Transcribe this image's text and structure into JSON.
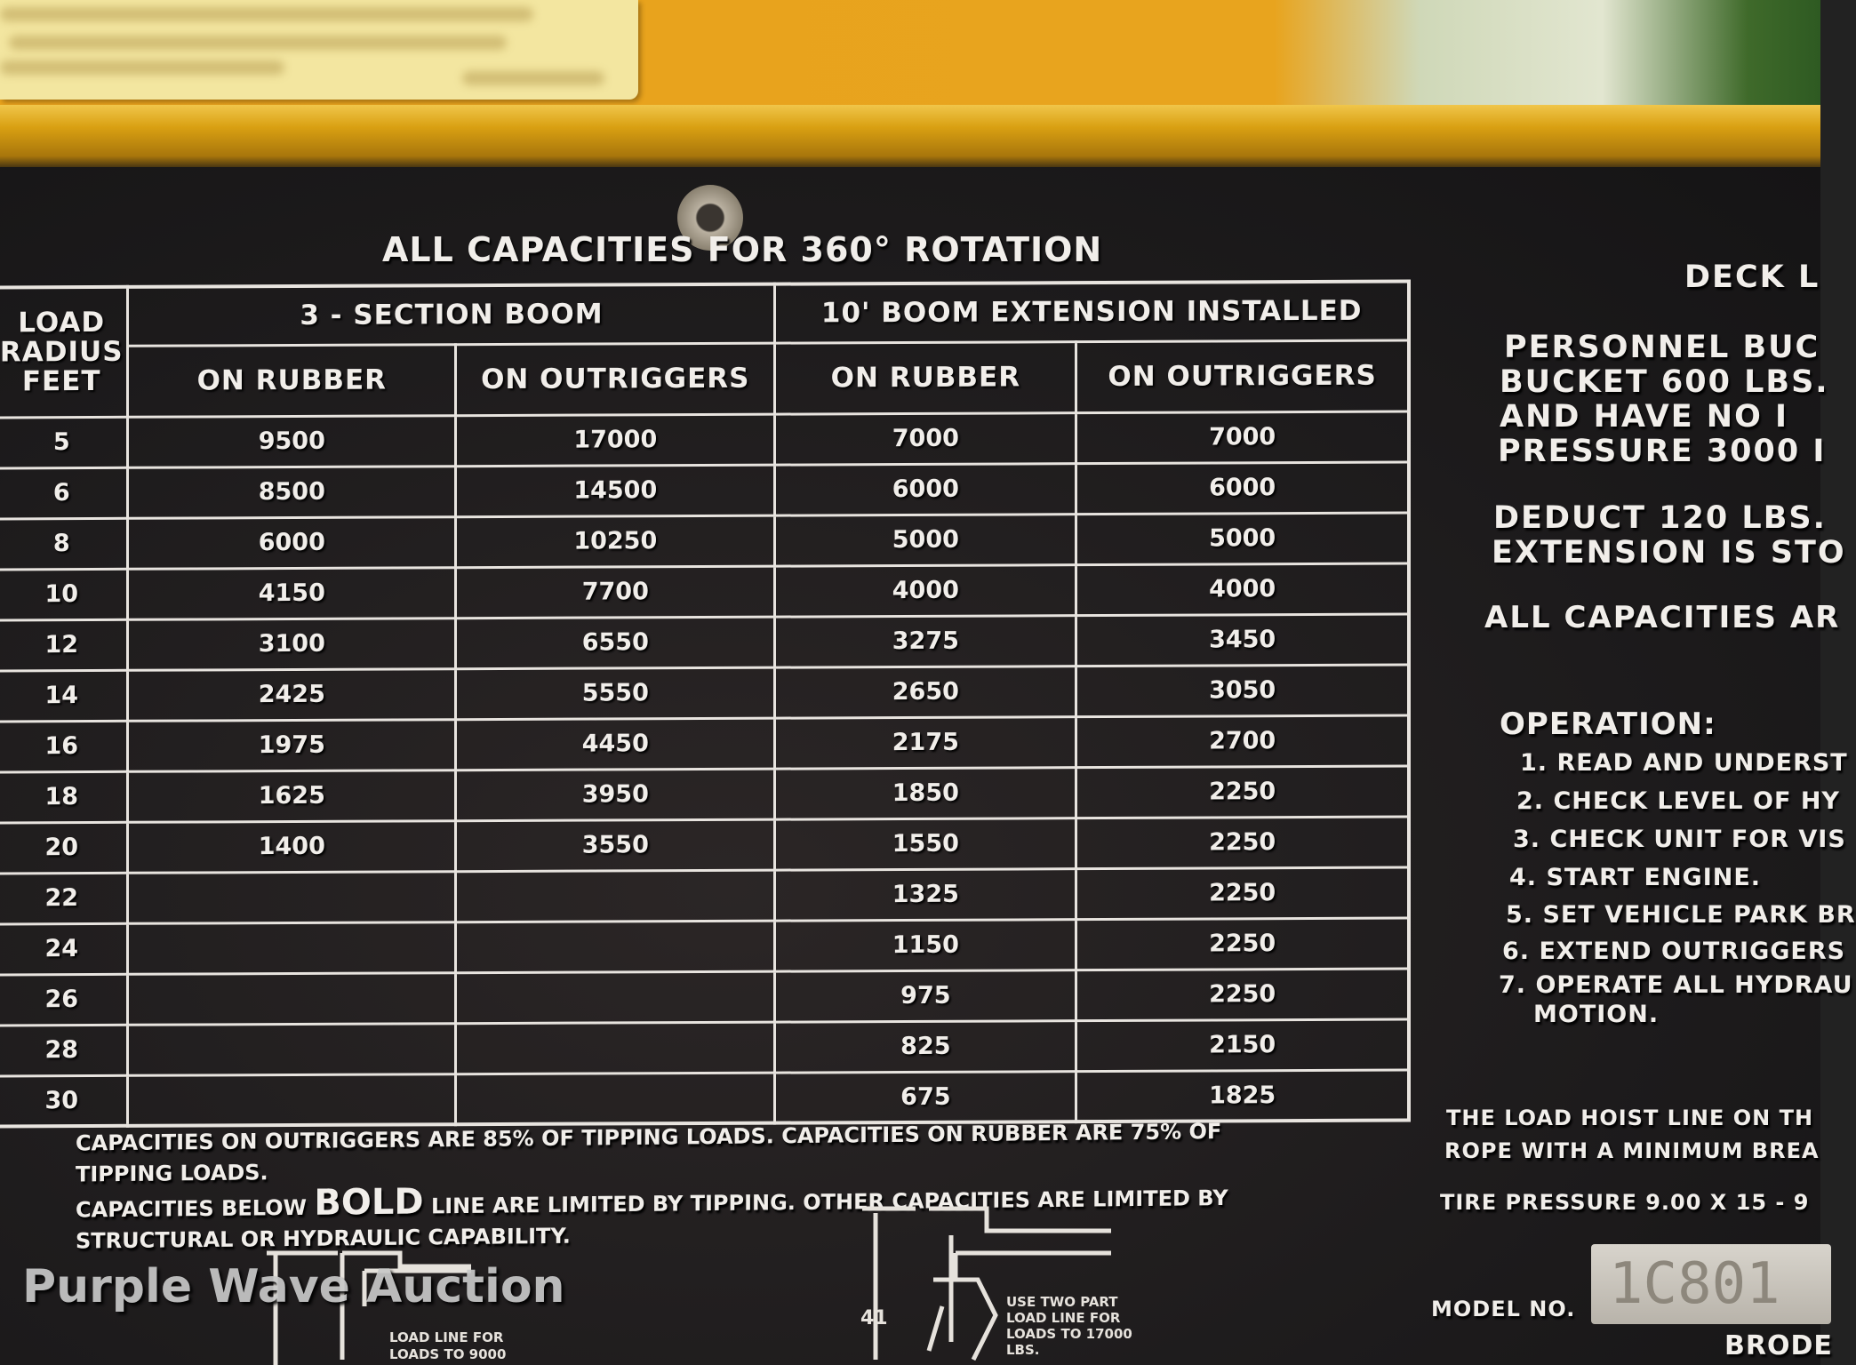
{
  "title": "ALL CAPACITIES FOR 360° ROTATION",
  "table": {
    "corner_header": [
      "LOAD",
      "RADIUS",
      "FEET"
    ],
    "group_headers": [
      "3 - SECTION BOOM",
      "10' BOOM EXTENSION INSTALLED"
    ],
    "sub_headers": [
      "ON RUBBER",
      "ON OUTRIGGERS",
      "ON RUBBER",
      "ON OUTRIGGERS"
    ],
    "rows": [
      {
        "radius": "5",
        "values": [
          "9500",
          "17000",
          "7000",
          "7000"
        ]
      },
      {
        "radius": "6",
        "values": [
          "8500",
          "14500",
          "6000",
          "6000"
        ]
      },
      {
        "radius": "8",
        "values": [
          "6000",
          "10250",
          "5000",
          "5000"
        ]
      },
      {
        "radius": "10",
        "values": [
          "4150",
          "7700",
          "4000",
          "4000"
        ]
      },
      {
        "radius": "12",
        "values": [
          "3100",
          "6550",
          "3275",
          "3450"
        ]
      },
      {
        "radius": "14",
        "values": [
          "2425",
          "5550",
          "2650",
          "3050"
        ]
      },
      {
        "radius": "16",
        "values": [
          "1975",
          "4450",
          "2175",
          "2700"
        ]
      },
      {
        "radius": "18",
        "values": [
          "1625",
          "3950",
          "1850",
          "2250"
        ]
      },
      {
        "radius": "20",
        "values": [
          "1400",
          "3550",
          "1550",
          "2250"
        ]
      },
      {
        "radius": "22",
        "values": [
          "",
          "",
          "1325",
          "2250"
        ]
      },
      {
        "radius": "24",
        "values": [
          "",
          "",
          "1150",
          "2250"
        ]
      },
      {
        "radius": "26",
        "values": [
          "",
          "",
          "975",
          "2250"
        ]
      },
      {
        "radius": "28",
        "values": [
          "",
          "",
          "825",
          "2150"
        ]
      },
      {
        "radius": "30",
        "values": [
          "",
          "",
          "675",
          "1825"
        ]
      }
    ]
  },
  "notes": {
    "line1": "CAPACITIES ON OUTRIGGERS ARE 85% OF TIPPING LOADS. CAPACITIES ON RUBBER ARE 75% OF",
    "line2": "TIPPING LOADS.",
    "line3_pre": "CAPACITIES BELOW",
    "line3_bold": "BOLD",
    "line3_post": "LINE ARE LIMITED BY TIPPING. OTHER CAPACITIES ARE LIMITED BY",
    "line4": "STRUCTURAL OR HYDRAULIC CAPABILITY."
  },
  "diagrams": {
    "left_caption": [
      "LOAD LINE FOR",
      "LOADS TO 9000"
    ],
    "right_caption": [
      "USE TWO PART",
      "LOAD LINE FOR",
      "LOADS TO 17000",
      "LBS."
    ],
    "dimension": "41"
  },
  "right_panel": {
    "deck": "DECK L",
    "personnel": [
      "PERSONNEL BUC",
      "BUCKET 600 LBS.",
      "AND HAVE NO I",
      "PRESSURE 3000 I"
    ],
    "deduct": [
      "DEDUCT 120 LBS.",
      "EXTENSION IS STO"
    ],
    "all_capacities": "ALL CAPACITIES AR",
    "operation_title": "OPERATION:",
    "operation_steps": [
      "1. READ AND UNDERST",
      "2. CHECK LEVEL OF HY",
      "3. CHECK UNIT FOR VIS",
      "4. START ENGINE.",
      "5. SET VEHICLE PARK BR",
      "6. EXTEND OUTRIGGERS",
      "7. OPERATE ALL HYDRAU",
      "MOTION."
    ],
    "hoist": [
      "THE LOAD HOIST LINE ON TH",
      "ROPE WITH A MINIMUM BREA"
    ],
    "tire": "TIRE PRESSURE 9.00 X 15 - 9",
    "model_label": "MODEL NO.",
    "model_value": "1C801",
    "maker": "BRODE"
  },
  "watermark": "Purple Wave Auction"
}
